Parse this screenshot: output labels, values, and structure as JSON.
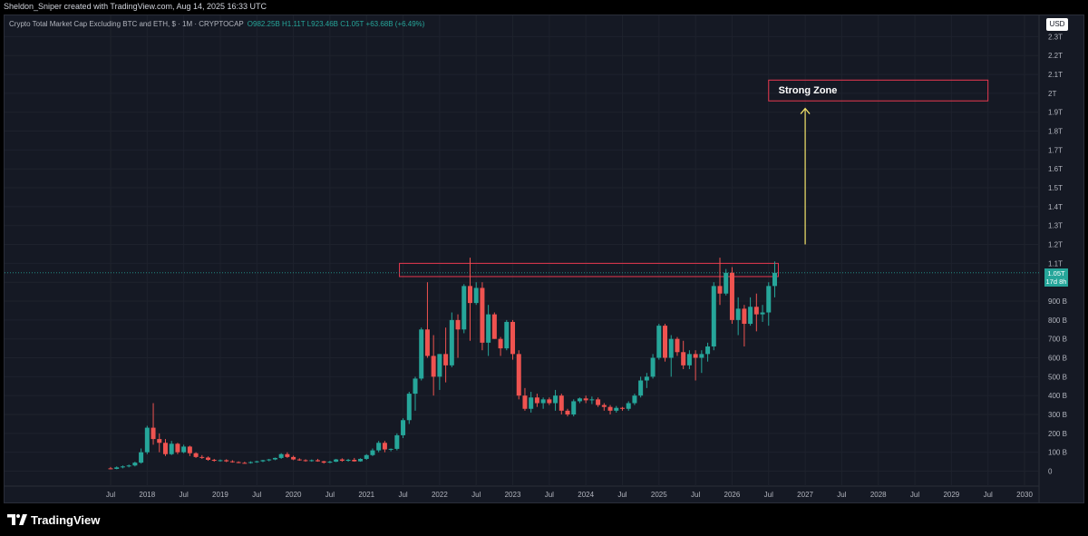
{
  "header": {
    "credit": "Sheldon_Sniper created with TradingView.com, Aug 14, 2025 16:33 UTC"
  },
  "legend": {
    "symbol": "Crypto Total Market Cap Excluding BTC and ETH, $ · 1M · CRYPTOCAP",
    "ohlc": "O982.25B H1.11T L923.46B C1.05T +63.68B (+6.49%)"
  },
  "currency_badge": "USD",
  "last_price_tag": {
    "price": "1.05T",
    "countdown": "17d 8h"
  },
  "annotation": {
    "label": "Strong Zone"
  },
  "brand": {
    "name": "TradingView"
  },
  "colors": {
    "up": "#26a69a",
    "down": "#ef5350",
    "zone_border": "#e8384f",
    "arrow": "#f5e66b",
    "background": "#151924"
  },
  "chart_data": {
    "type": "candlestick",
    "units": "USD billions",
    "interval": "1M",
    "y_axis": {
      "ticks": [
        "0",
        "100 B",
        "200 B",
        "300 B",
        "400 B",
        "500 B",
        "600 B",
        "700 B",
        "800 B",
        "900 B",
        "1 T",
        "1.1T",
        "1.2T",
        "1.3T",
        "1.4T",
        "1.5T",
        "1.6T",
        "1.7T",
        "1.8T",
        "1.9T",
        "2T",
        "2.1T",
        "2.2T",
        "2.3T"
      ],
      "range": [
        0,
        2300
      ]
    },
    "x_axis": {
      "ticks": [
        "Jul",
        "2018",
        "Jul",
        "2019",
        "Jul",
        "2020",
        "Jul",
        "2021",
        "Jul",
        "2022",
        "Jul",
        "2023",
        "Jul",
        "2024",
        "Jul",
        "2025",
        "Jul",
        "2026",
        "Jul",
        "2027",
        "Jul",
        "2028",
        "Jul",
        "2029",
        "Jul",
        "2030"
      ],
      "start": "2017-07"
    },
    "resistance_zone": {
      "from": "2021-07",
      "to": "2026-08",
      "low": 1030,
      "high": 1100
    },
    "target_zone": {
      "from": "2026-07",
      "to": "2029-07",
      "low": 1960,
      "high": 2070
    },
    "arrow": {
      "date": "2027-01",
      "from": 1200,
      "to": 1920
    },
    "candles": [
      {
        "d": "2017-07",
        "o": 15,
        "h": 22,
        "l": 10,
        "c": 12
      },
      {
        "d": "2017-08",
        "o": 12,
        "h": 25,
        "l": 10,
        "c": 20
      },
      {
        "d": "2017-09",
        "o": 20,
        "h": 30,
        "l": 15,
        "c": 25
      },
      {
        "d": "2017-10",
        "o": 25,
        "h": 35,
        "l": 20,
        "c": 30
      },
      {
        "d": "2017-11",
        "o": 30,
        "h": 50,
        "l": 25,
        "c": 45
      },
      {
        "d": "2017-12",
        "o": 45,
        "h": 120,
        "l": 40,
        "c": 100
      },
      {
        "d": "2018-01",
        "o": 100,
        "h": 240,
        "l": 90,
        "c": 230
      },
      {
        "d": "2018-02",
        "o": 230,
        "h": 360,
        "l": 140,
        "c": 170
      },
      {
        "d": "2018-03",
        "o": 170,
        "h": 200,
        "l": 100,
        "c": 150
      },
      {
        "d": "2018-04",
        "o": 150,
        "h": 170,
        "l": 80,
        "c": 90
      },
      {
        "d": "2018-05",
        "o": 90,
        "h": 160,
        "l": 85,
        "c": 145
      },
      {
        "d": "2018-06",
        "o": 145,
        "h": 150,
        "l": 90,
        "c": 100
      },
      {
        "d": "2018-07",
        "o": 100,
        "h": 140,
        "l": 95,
        "c": 130
      },
      {
        "d": "2018-08",
        "o": 130,
        "h": 135,
        "l": 80,
        "c": 95
      },
      {
        "d": "2018-09",
        "o": 95,
        "h": 100,
        "l": 70,
        "c": 75
      },
      {
        "d": "2018-10",
        "o": 75,
        "h": 85,
        "l": 65,
        "c": 72
      },
      {
        "d": "2018-11",
        "o": 72,
        "h": 78,
        "l": 55,
        "c": 60
      },
      {
        "d": "2018-12",
        "o": 60,
        "h": 65,
        "l": 50,
        "c": 55
      },
      {
        "d": "2019-01",
        "o": 55,
        "h": 62,
        "l": 50,
        "c": 58
      },
      {
        "d": "2019-02",
        "o": 58,
        "h": 63,
        "l": 48,
        "c": 52
      },
      {
        "d": "2019-03",
        "o": 52,
        "h": 58,
        "l": 45,
        "c": 48
      },
      {
        "d": "2019-04",
        "o": 48,
        "h": 52,
        "l": 42,
        "c": 44
      },
      {
        "d": "2019-05",
        "o": 44,
        "h": 50,
        "l": 40,
        "c": 43
      },
      {
        "d": "2019-06",
        "o": 43,
        "h": 52,
        "l": 40,
        "c": 48
      },
      {
        "d": "2019-07",
        "o": 48,
        "h": 55,
        "l": 44,
        "c": 52
      },
      {
        "d": "2019-08",
        "o": 52,
        "h": 60,
        "l": 48,
        "c": 58
      },
      {
        "d": "2019-09",
        "o": 58,
        "h": 65,
        "l": 52,
        "c": 62
      },
      {
        "d": "2019-10",
        "o": 62,
        "h": 72,
        "l": 58,
        "c": 70
      },
      {
        "d": "2019-11",
        "o": 70,
        "h": 95,
        "l": 65,
        "c": 90
      },
      {
        "d": "2019-12",
        "o": 90,
        "h": 100,
        "l": 70,
        "c": 75
      },
      {
        "d": "2020-01",
        "o": 75,
        "h": 82,
        "l": 58,
        "c": 62
      },
      {
        "d": "2020-02",
        "o": 62,
        "h": 68,
        "l": 55,
        "c": 58
      },
      {
        "d": "2020-03",
        "o": 58,
        "h": 63,
        "l": 50,
        "c": 55
      },
      {
        "d": "2020-04",
        "o": 55,
        "h": 62,
        "l": 50,
        "c": 58
      },
      {
        "d": "2020-05",
        "o": 58,
        "h": 65,
        "l": 50,
        "c": 52
      },
      {
        "d": "2020-06",
        "o": 52,
        "h": 55,
        "l": 40,
        "c": 45
      },
      {
        "d": "2020-07",
        "o": 45,
        "h": 55,
        "l": 42,
        "c": 50
      },
      {
        "d": "2020-08",
        "o": 50,
        "h": 65,
        "l": 48,
        "c": 62
      },
      {
        "d": "2020-09",
        "o": 62,
        "h": 68,
        "l": 50,
        "c": 55
      },
      {
        "d": "2020-10",
        "o": 55,
        "h": 65,
        "l": 50,
        "c": 60
      },
      {
        "d": "2020-11",
        "o": 60,
        "h": 70,
        "l": 50,
        "c": 52
      },
      {
        "d": "2020-12",
        "o": 52,
        "h": 68,
        "l": 50,
        "c": 65
      },
      {
        "d": "2021-01",
        "o": 65,
        "h": 90,
        "l": 60,
        "c": 85
      },
      {
        "d": "2021-02",
        "o": 85,
        "h": 120,
        "l": 80,
        "c": 110
      },
      {
        "d": "2021-03",
        "o": 110,
        "h": 160,
        "l": 100,
        "c": 150
      },
      {
        "d": "2021-04",
        "o": 150,
        "h": 160,
        "l": 100,
        "c": 115
      },
      {
        "d": "2021-05",
        "o": 115,
        "h": 120,
        "l": 105,
        "c": 118
      },
      {
        "d": "2021-06",
        "o": 118,
        "h": 200,
        "l": 110,
        "c": 190
      },
      {
        "d": "2021-07",
        "o": 190,
        "h": 280,
        "l": 175,
        "c": 270
      },
      {
        "d": "2021-08",
        "o": 270,
        "h": 420,
        "l": 250,
        "c": 410
      },
      {
        "d": "2021-09",
        "o": 410,
        "h": 500,
        "l": 320,
        "c": 490
      },
      {
        "d": "2021-10",
        "o": 490,
        "h": 760,
        "l": 480,
        "c": 750
      },
      {
        "d": "2021-11",
        "o": 750,
        "h": 1000,
        "l": 600,
        "c": 610
      },
      {
        "d": "2021-12",
        "o": 610,
        "h": 720,
        "l": 400,
        "c": 500
      },
      {
        "d": "2022-01",
        "o": 500,
        "h": 620,
        "l": 430,
        "c": 620
      },
      {
        "d": "2022-02",
        "o": 620,
        "h": 760,
        "l": 470,
        "c": 560
      },
      {
        "d": "2022-03",
        "o": 560,
        "h": 840,
        "l": 550,
        "c": 800
      },
      {
        "d": "2022-04",
        "o": 800,
        "h": 830,
        "l": 600,
        "c": 750
      },
      {
        "d": "2022-05",
        "o": 750,
        "h": 990,
        "l": 730,
        "c": 980
      },
      {
        "d": "2022-06",
        "o": 980,
        "h": 1130,
        "l": 690,
        "c": 890
      },
      {
        "d": "2022-07",
        "o": 890,
        "h": 1000,
        "l": 880,
        "c": 970
      },
      {
        "d": "2022-08",
        "o": 970,
        "h": 1000,
        "l": 640,
        "c": 680
      },
      {
        "d": "2022-09",
        "o": 680,
        "h": 880,
        "l": 610,
        "c": 830
      },
      {
        "d": "2022-10",
        "o": 830,
        "h": 840,
        "l": 700,
        "c": 700
      },
      {
        "d": "2022-11",
        "o": 700,
        "h": 710,
        "l": 610,
        "c": 650
      },
      {
        "d": "2022-12",
        "o": 650,
        "h": 800,
        "l": 640,
        "c": 790
      },
      {
        "d": "2023-01",
        "o": 790,
        "h": 800,
        "l": 590,
        "c": 620
      },
      {
        "d": "2023-02",
        "o": 620,
        "h": 640,
        "l": 380,
        "c": 400
      },
      {
        "d": "2023-03",
        "o": 400,
        "h": 440,
        "l": 320,
        "c": 330
      },
      {
        "d": "2023-04",
        "o": 330,
        "h": 420,
        "l": 310,
        "c": 390
      },
      {
        "d": "2023-05",
        "o": 390,
        "h": 410,
        "l": 340,
        "c": 360
      },
      {
        "d": "2023-06",
        "o": 360,
        "h": 390,
        "l": 330,
        "c": 380
      },
      {
        "d": "2023-07",
        "o": 380,
        "h": 390,
        "l": 350,
        "c": 360
      },
      {
        "d": "2023-08",
        "o": 360,
        "h": 430,
        "l": 320,
        "c": 400
      },
      {
        "d": "2023-09",
        "o": 400,
        "h": 410,
        "l": 300,
        "c": 320
      },
      {
        "d": "2023-10",
        "o": 320,
        "h": 330,
        "l": 290,
        "c": 300
      },
      {
        "d": "2023-11",
        "o": 300,
        "h": 380,
        "l": 290,
        "c": 370
      },
      {
        "d": "2023-12",
        "o": 370,
        "h": 390,
        "l": 360,
        "c": 385
      },
      {
        "d": "2024-01",
        "o": 385,
        "h": 400,
        "l": 360,
        "c": 375
      },
      {
        "d": "2024-02",
        "o": 375,
        "h": 395,
        "l": 355,
        "c": 380
      },
      {
        "d": "2024-03",
        "o": 380,
        "h": 390,
        "l": 340,
        "c": 350
      },
      {
        "d": "2024-04",
        "o": 350,
        "h": 360,
        "l": 320,
        "c": 340
      },
      {
        "d": "2024-05",
        "o": 340,
        "h": 350,
        "l": 300,
        "c": 320
      },
      {
        "d": "2024-06",
        "o": 320,
        "h": 345,
        "l": 310,
        "c": 335
      },
      {
        "d": "2024-07",
        "o": 335,
        "h": 340,
        "l": 320,
        "c": 330
      },
      {
        "d": "2024-08",
        "o": 330,
        "h": 370,
        "l": 320,
        "c": 360
      },
      {
        "d": "2024-09",
        "o": 360,
        "h": 410,
        "l": 350,
        "c": 400
      },
      {
        "d": "2024-10",
        "o": 400,
        "h": 500,
        "l": 390,
        "c": 480
      },
      {
        "d": "2024-11",
        "o": 480,
        "h": 520,
        "l": 440,
        "c": 500
      },
      {
        "d": "2024-12",
        "o": 500,
        "h": 620,
        "l": 490,
        "c": 600
      },
      {
        "d": "2025-01",
        "o": 600,
        "h": 780,
        "l": 590,
        "c": 770
      },
      {
        "d": "2025-02",
        "o": 770,
        "h": 780,
        "l": 580,
        "c": 600
      },
      {
        "d": "2025-03",
        "o": 600,
        "h": 720,
        "l": 500,
        "c": 700
      },
      {
        "d": "2025-04",
        "o": 700,
        "h": 710,
        "l": 610,
        "c": 630
      },
      {
        "d": "2025-05",
        "o": 630,
        "h": 690,
        "l": 540,
        "c": 560
      },
      {
        "d": "2025-06",
        "o": 560,
        "h": 640,
        "l": 540,
        "c": 620
      },
      {
        "d": "2025-07",
        "o": 620,
        "h": 640,
        "l": 480,
        "c": 600
      },
      {
        "d": "2025-08",
        "o": 600,
        "h": 640,
        "l": 520,
        "c": 620
      },
      {
        "d": "2025-09",
        "o": 620,
        "h": 680,
        "l": 580,
        "c": 660
      },
      {
        "d": "2025-10",
        "o": 660,
        "h": 1000,
        "l": 640,
        "c": 980
      },
      {
        "d": "2025-11",
        "o": 980,
        "h": 1130,
        "l": 880,
        "c": 940
      },
      {
        "d": "2025-12",
        "o": 940,
        "h": 1070,
        "l": 930,
        "c": 1050
      },
      {
        "d": "2026-01",
        "o": 1050,
        "h": 1080,
        "l": 780,
        "c": 800
      },
      {
        "d": "2026-02",
        "o": 800,
        "h": 920,
        "l": 720,
        "c": 860
      },
      {
        "d": "2026-03",
        "o": 860,
        "h": 880,
        "l": 660,
        "c": 780
      },
      {
        "d": "2026-04",
        "o": 780,
        "h": 920,
        "l": 770,
        "c": 870
      },
      {
        "d": "2026-05",
        "o": 870,
        "h": 940,
        "l": 740,
        "c": 830
      },
      {
        "d": "2026-06",
        "o": 830,
        "h": 880,
        "l": 790,
        "c": 840
      },
      {
        "d": "2026-07",
        "o": 840,
        "h": 1000,
        "l": 770,
        "c": 980
      },
      {
        "d": "2026-08",
        "o": 980,
        "h": 1110,
        "l": 920,
        "c": 1050
      }
    ]
  }
}
